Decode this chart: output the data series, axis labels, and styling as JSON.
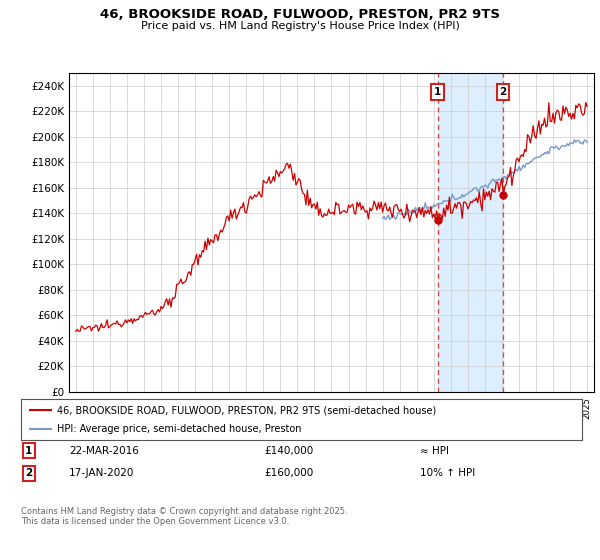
{
  "title_line1": "46, BROOKSIDE ROAD, FULWOOD, PRESTON, PR2 9TS",
  "title_line2": "Price paid vs. HM Land Registry's House Price Index (HPI)",
  "ylim": [
    0,
    250000
  ],
  "yticks": [
    0,
    20000,
    40000,
    60000,
    80000,
    100000,
    120000,
    140000,
    160000,
    180000,
    200000,
    220000,
    240000
  ],
  "ytick_labels": [
    "£0",
    "£20K",
    "£40K",
    "£60K",
    "£80K",
    "£100K",
    "£120K",
    "£140K",
    "£160K",
    "£180K",
    "£200K",
    "£220K",
    "£240K"
  ],
  "xlim_start": 1994.6,
  "xlim_end": 2025.4,
  "sale1_year": 2016.22,
  "sale1_price": 140000,
  "sale2_year": 2020.05,
  "sale2_price": 160000,
  "line_color_red": "#cc0000",
  "line_color_blue": "#7799cc",
  "dashed_color": "#dd4444",
  "shade_color": "#ddeeff",
  "legend_label_red": "46, BROOKSIDE ROAD, FULWOOD, PRESTON, PR2 9TS (semi-detached house)",
  "legend_label_blue": "HPI: Average price, semi-detached house, Preston",
  "table_row1": [
    "1",
    "22-MAR-2016",
    "£140,000",
    "≈ HPI"
  ],
  "table_row2": [
    "2",
    "17-JAN-2020",
    "£160,000",
    "10% ↑ HPI"
  ],
  "footnote": "Contains HM Land Registry data © Crown copyright and database right 2025.\nThis data is licensed under the Open Government Licence v3.0.",
  "background_color": "#ffffff",
  "grid_color": "#cccccc"
}
